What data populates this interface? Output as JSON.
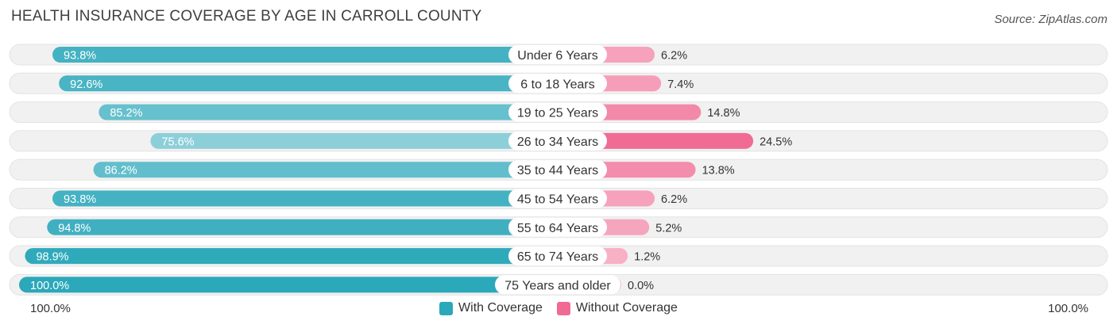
{
  "header": {
    "title": "HEALTH INSURANCE COVERAGE BY AGE IN CARROLL COUNTY",
    "source": "Source: ZipAtlas.com"
  },
  "axis": {
    "left_label": "100.0%",
    "right_label": "100.0%"
  },
  "legend": {
    "with_label": "With Coverage",
    "without_label": "Without Coverage"
  },
  "colors": {
    "with_strong": "#2ba8ba",
    "with_light": "#8fd0da",
    "without_strong": "#f06b94",
    "without_light": "#f8b4c9",
    "track": "#f1f1f1"
  },
  "chart_data": {
    "type": "bar",
    "title": "HEALTH INSURANCE COVERAGE BY AGE IN CARROLL COUNTY",
    "orientation": "horizontal-diverging",
    "categories": [
      "Under 6 Years",
      "6 to 18 Years",
      "19 to 25 Years",
      "26 to 34 Years",
      "35 to 44 Years",
      "45 to 54 Years",
      "55 to 64 Years",
      "65 to 74 Years",
      "75 Years and older"
    ],
    "series": [
      {
        "name": "With Coverage",
        "values": [
          93.8,
          92.6,
          85.2,
          75.6,
          86.2,
          93.8,
          94.8,
          98.9,
          100.0
        ],
        "labels": [
          "93.8%",
          "92.6%",
          "85.2%",
          "75.6%",
          "86.2%",
          "93.8%",
          "94.8%",
          "98.9%",
          "100.0%"
        ]
      },
      {
        "name": "Without Coverage",
        "values": [
          6.2,
          7.4,
          14.8,
          24.5,
          13.8,
          6.2,
          5.2,
          1.2,
          0.0
        ],
        "labels": [
          "6.2%",
          "7.4%",
          "14.8%",
          "24.5%",
          "13.8%",
          "6.2%",
          "5.2%",
          "1.2%",
          "0.0%"
        ]
      }
    ],
    "xlim": [
      0,
      100
    ],
    "xlabel_left": "100.0%",
    "xlabel_right": "100.0%",
    "legend_position": "bottom-center"
  }
}
